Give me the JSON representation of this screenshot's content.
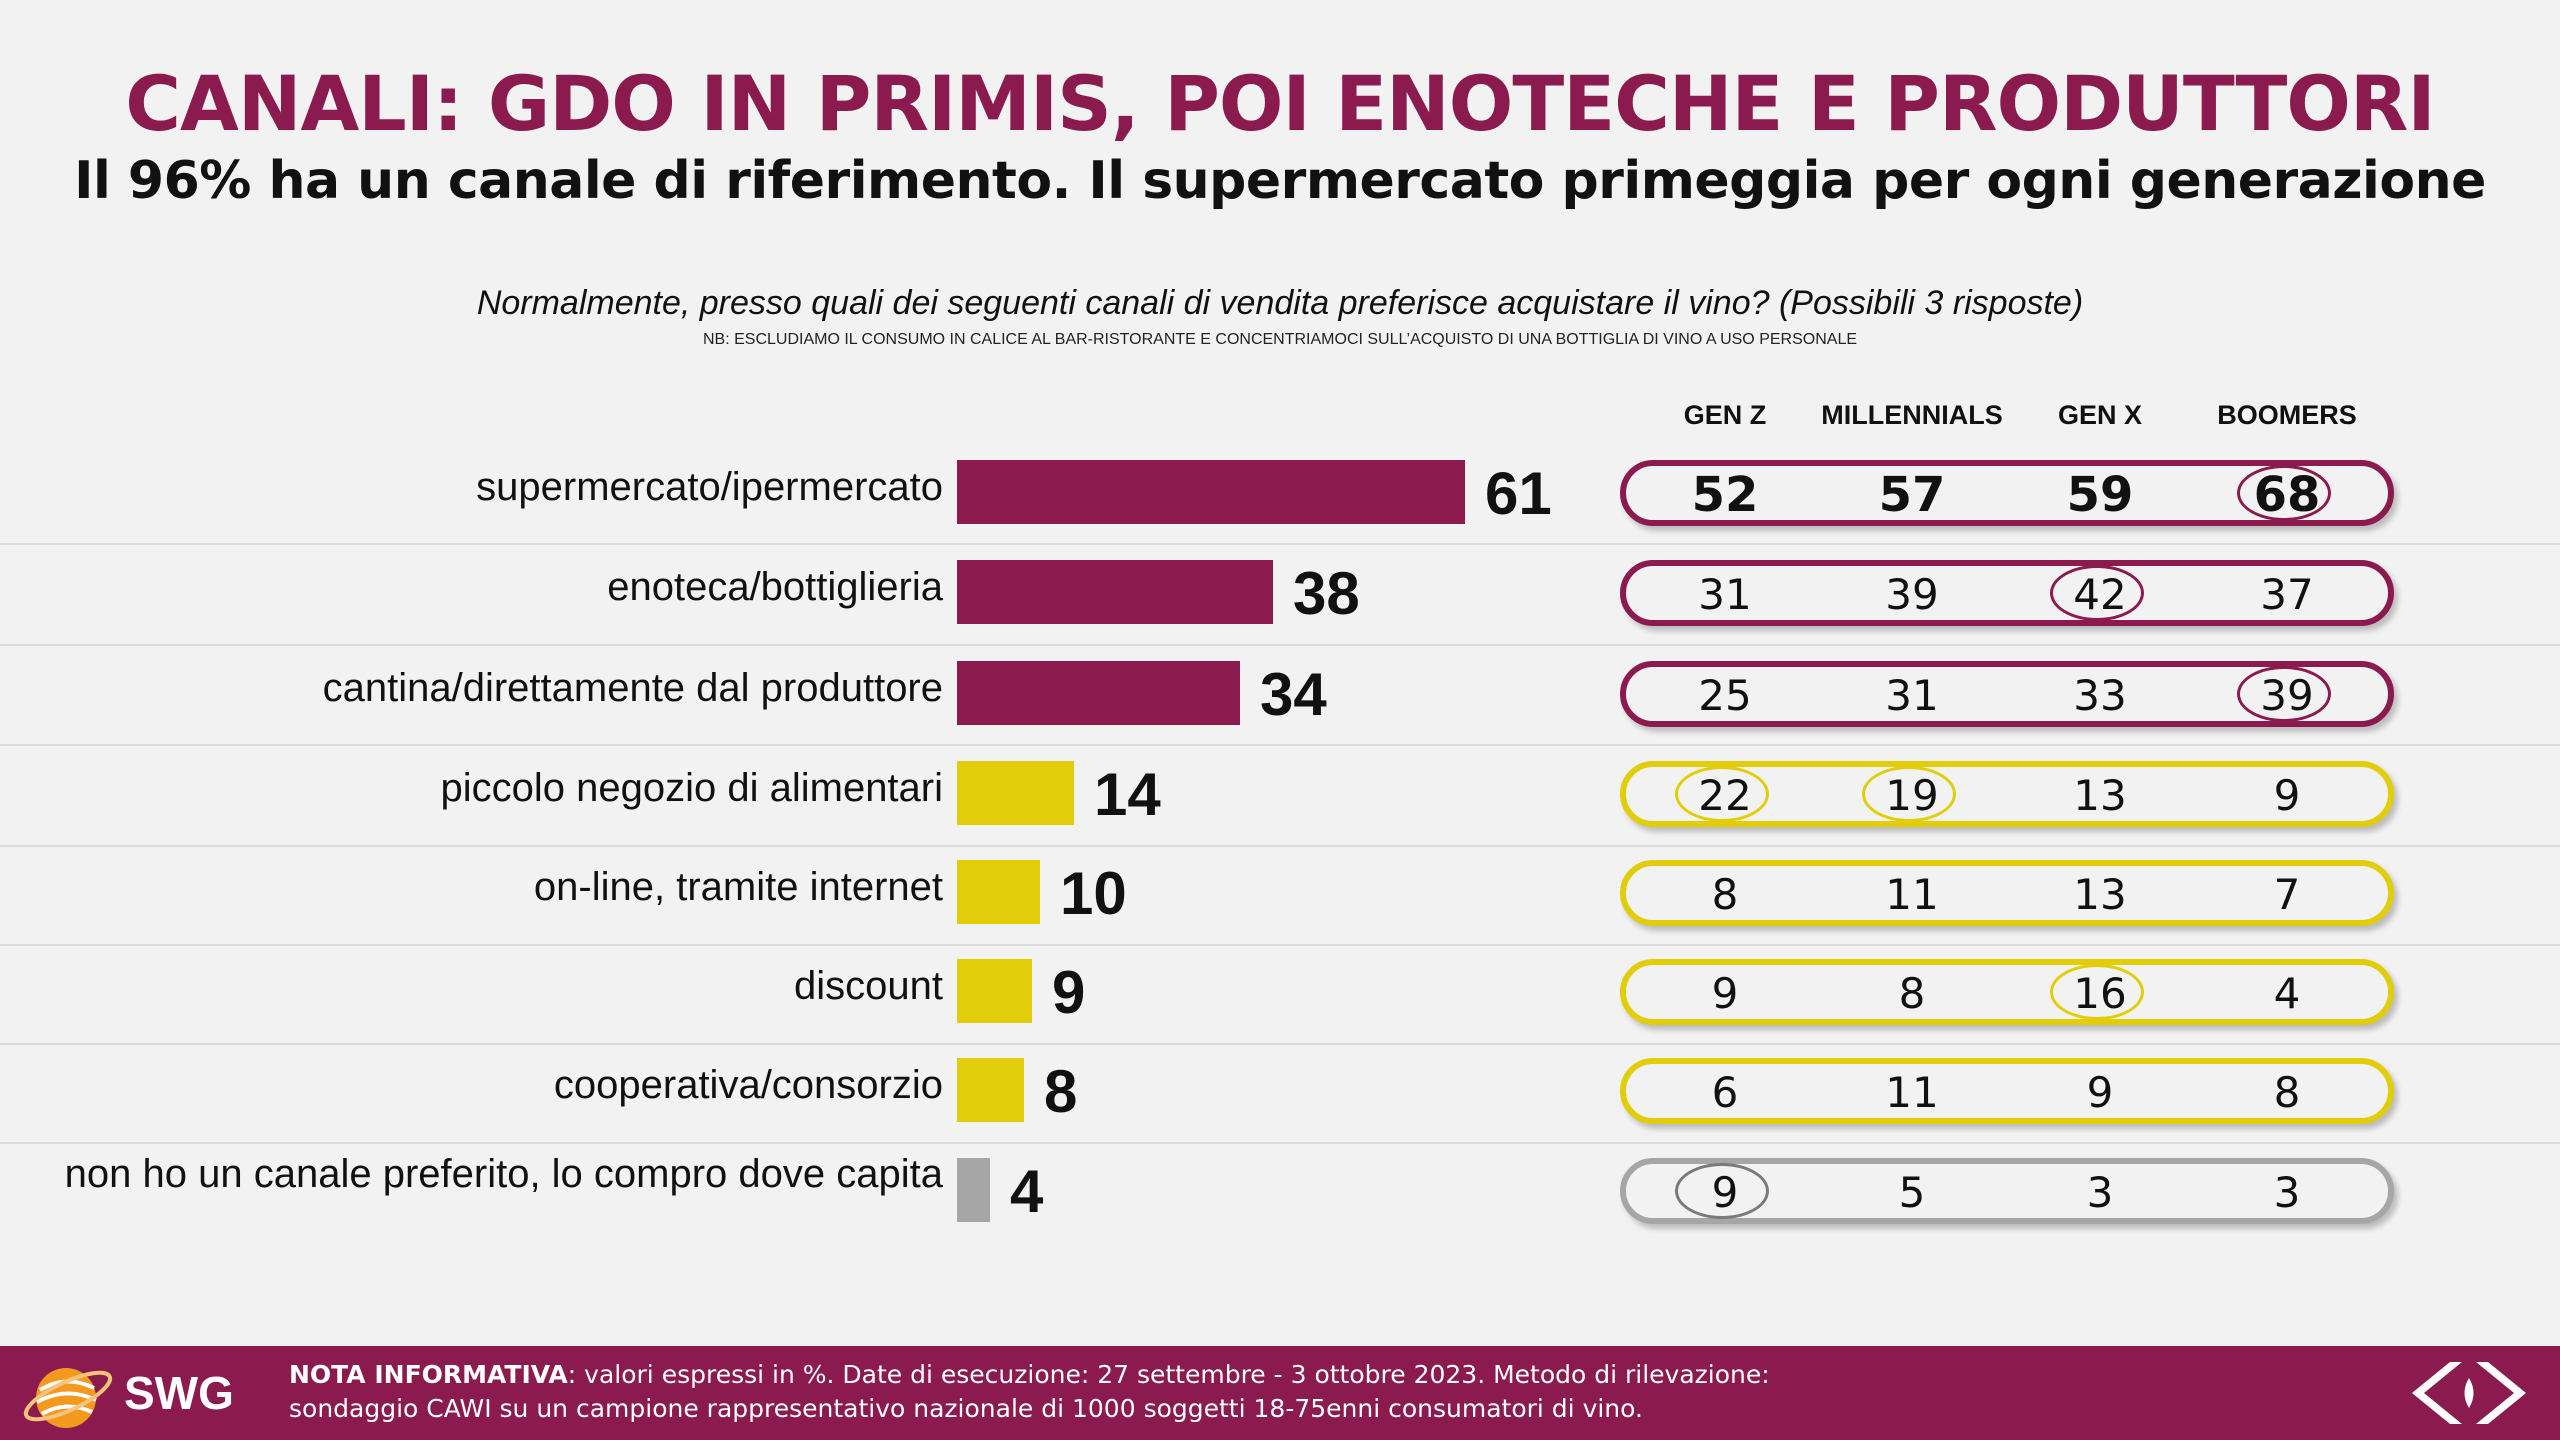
{
  "title": "CANALI: GDO IN PRIMIS, POI ENOTECHE E PRODUTTORI",
  "subtitle": "Il 96% ha un canale di riferimento. Il supermercato primeggia per ogni generazione",
  "question": "Normalmente, presso quali dei seguenti canali di vendita preferisce acquistare il vino? (Possibili 3 risposte)",
  "note": "NB: ESCLUDIAMO IL CONSUMO IN CALICE AL BAR-RISTORANTE E CONCENTRIAMOCI SULL’ACQUISTO DI UNA BOTTIGLIA DI VINO A USO PERSONALE",
  "colors": {
    "purple": "#8b1a4f",
    "yellow": "#e2cd0b",
    "gray": "#a6a6a6"
  },
  "chart_data": {
    "type": "bar",
    "orientation": "horizontal",
    "categories": [
      "supermercato/ipermercato",
      "enoteca/bottiglieria",
      "cantina/direttamente dal produttore",
      "piccolo negozio di alimentari",
      "on-line, tramite internet",
      "discount",
      "cooperativa/consorzio",
      "non ho un canale preferito, lo compro dove capita"
    ],
    "values": [
      61,
      38,
      34,
      14,
      10,
      9,
      8,
      4
    ],
    "bar_colors": [
      "#8b1a4f",
      "#8b1a4f",
      "#8b1a4f",
      "#e2cd0b",
      "#e2cd0b",
      "#e2cd0b",
      "#e2cd0b",
      "#a6a6a6"
    ],
    "xlim": [
      0,
      61
    ],
    "table": {
      "columns": [
        "GEN Z",
        "MILLENNIALS",
        "GEN X",
        "BOOMERS"
      ],
      "rows": [
        [
          52,
          57,
          59,
          68
        ],
        [
          31,
          39,
          42,
          37
        ],
        [
          25,
          31,
          33,
          39
        ],
        [
          22,
          19,
          13,
          9
        ],
        [
          8,
          11,
          13,
          7
        ],
        [
          9,
          8,
          16,
          4
        ],
        [
          6,
          11,
          9,
          8
        ],
        [
          9,
          5,
          3,
          3
        ]
      ],
      "highlighted": [
        [
          0,
          3
        ],
        [
          1,
          2
        ],
        [
          2,
          3
        ],
        [
          3,
          0
        ],
        [
          3,
          1
        ],
        [
          5,
          2
        ],
        [
          7,
          0
        ]
      ],
      "bold_rows": [
        0
      ]
    }
  },
  "footer": {
    "logo": "SWG",
    "note_label": "NOTA INFORMATIVA",
    "note_line1": ": valori espressi in %. Date di esecuzione: 27 settembre - 3 ottobre 2023. Metodo di rilevazione:",
    "note_line2": "sondaggio CAWI su un campione rappresentativo nazionale di 1000 soggetti 18-75enni consumatori di vino."
  }
}
